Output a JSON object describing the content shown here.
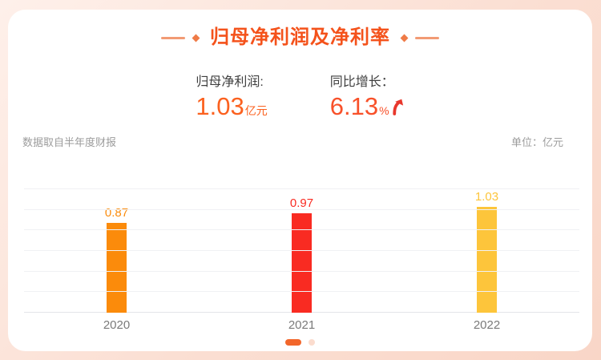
{
  "header": {
    "title": "归母净利润及净利率"
  },
  "stats": [
    {
      "label": "归母净利润:",
      "value": "1.03",
      "unit": "亿元",
      "color": "#FB611F",
      "trend": null
    },
    {
      "label": "同比增长：",
      "value": "6.13",
      "unit": "%",
      "color": "#F8512A",
      "trend": "up"
    }
  ],
  "trend_icon_color": "#E8372C",
  "meta": {
    "source_note": "数据取自半年度财报",
    "unit_label": "单位：亿元"
  },
  "chart_data": {
    "type": "bar",
    "title": "归母净利润及净利率",
    "categories": [
      "2020",
      "2021",
      "2022"
    ],
    "values": [
      0.87,
      0.97,
      1.03
    ],
    "value_labels": [
      "0.87",
      "0.97",
      "1.03"
    ],
    "bar_colors": [
      "#FB8B0B",
      "#F92B22",
      "#FDC53B"
    ],
    "xlabel": "",
    "ylabel": "亿元",
    "ylim": [
      0,
      1.2
    ],
    "grid": true,
    "gridline_step": 0.2,
    "legend": null
  },
  "pagination": {
    "dots": 2,
    "active_index": 0,
    "active_color": "#F2662B",
    "inactive_color": "#FBDCCE"
  }
}
